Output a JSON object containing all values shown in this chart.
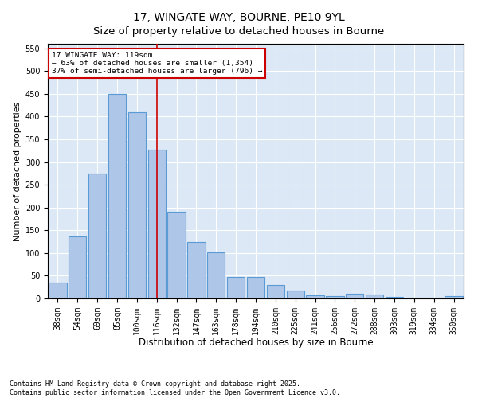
{
  "title": "17, WINGATE WAY, BOURNE, PE10 9YL",
  "subtitle": "Size of property relative to detached houses in Bourne",
  "xlabel": "Distribution of detached houses by size in Bourne",
  "ylabel": "Number of detached properties",
  "categories": [
    "38sqm",
    "54sqm",
    "69sqm",
    "85sqm",
    "100sqm",
    "116sqm",
    "132sqm",
    "147sqm",
    "163sqm",
    "178sqm",
    "194sqm",
    "210sqm",
    "225sqm",
    "241sqm",
    "256sqm",
    "272sqm",
    "288sqm",
    "303sqm",
    "319sqm",
    "334sqm",
    "350sqm"
  ],
  "values": [
    35,
    137,
    275,
    450,
    410,
    328,
    190,
    125,
    101,
    47,
    47,
    30,
    18,
    7,
    5,
    10,
    8,
    3,
    1,
    1,
    5
  ],
  "bar_color": "#aec6e8",
  "bar_edge_color": "#5b9bd5",
  "vline_x": 5,
  "vline_color": "#cc0000",
  "annotation_text": "17 WINGATE WAY: 119sqm\n← 63% of detached houses are smaller (1,354)\n37% of semi-detached houses are larger (796) →",
  "annotation_box_color": "#ffffff",
  "annotation_box_edge": "#cc0000",
  "ylim": [
    0,
    560
  ],
  "yticks": [
    0,
    50,
    100,
    150,
    200,
    250,
    300,
    350,
    400,
    450,
    500,
    550
  ],
  "bg_color": "#dce8f5",
  "fig_color": "#ffffff",
  "footer": "Contains HM Land Registry data © Crown copyright and database right 2025.\nContains public sector information licensed under the Open Government Licence v3.0.",
  "title_fontsize": 10,
  "xlabel_fontsize": 8.5,
  "ylabel_fontsize": 8,
  "tick_fontsize": 7,
  "footer_fontsize": 6
}
